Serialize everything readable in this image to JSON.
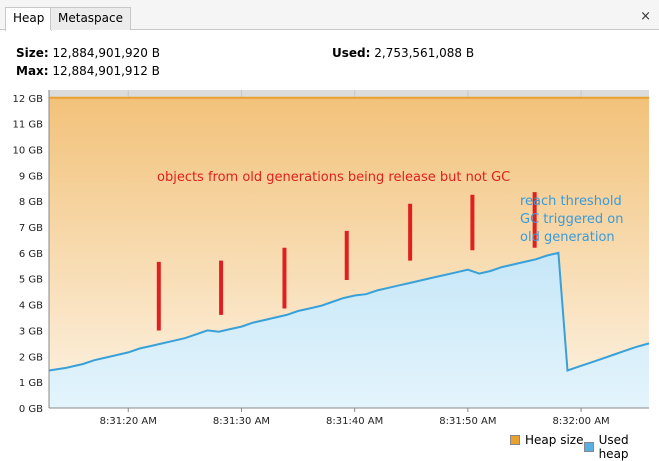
{
  "tabs": [
    {
      "label": "Heap",
      "active": true
    },
    {
      "label": "Metaspace",
      "active": false
    }
  ],
  "close_icon": "×",
  "stats": {
    "size_label": "Size:",
    "size_value": "12,884,901,920 B",
    "max_label": "Max:",
    "max_value": "12,884,901,912 B",
    "used_label": "Used:",
    "used_value": "2,753,561,088 B"
  },
  "annotations": {
    "top": "objects from old generations being release but not GC",
    "right_line1": "reach threshold",
    "right_line2": "GC triggered on",
    "right_line3": "old generation",
    "annotation_color": "#e02020",
    "note_color": "#3a9ad9"
  },
  "legend": {
    "heap_size_label": "Heap size",
    "used_heap_label": "Used heap",
    "heap_size_color": "#e8a030",
    "used_heap_color": "#5aaee0"
  },
  "chart_data": {
    "type": "area",
    "y_unit": "GB",
    "y_ticks": [
      "0 GB",
      "1 GB",
      "2 GB",
      "3 GB",
      "4 GB",
      "5 GB",
      "6 GB",
      "7 GB",
      "8 GB",
      "9 GB",
      "10 GB",
      "11 GB",
      "12 GB"
    ],
    "ylim": [
      0,
      12.3
    ],
    "x_ticks": [
      "8:31:20 AM",
      "8:31:30 AM",
      "8:31:40 AM",
      "8:31:50 AM",
      "8:32:00 AM"
    ],
    "xlim_seconds": [
      13,
      66
    ],
    "grid": true,
    "legend_position": "bottom-right",
    "series": [
      {
        "name": "Heap size",
        "x_seconds": [
          13,
          66
        ],
        "values": [
          12.0,
          12.0
        ]
      },
      {
        "name": "Used heap",
        "x_seconds": [
          13,
          14.5,
          16,
          17,
          18,
          19,
          20,
          21,
          22,
          23,
          24,
          25,
          26,
          27,
          28,
          29,
          30,
          31,
          32,
          33,
          34,
          35,
          36,
          37,
          38,
          39,
          40,
          41,
          42,
          43,
          44,
          45,
          46,
          47,
          48,
          49,
          50,
          51,
          52,
          53,
          54,
          55,
          56,
          57,
          58,
          58.8,
          59.8,
          60.8,
          61.8,
          62.8,
          63.8,
          64.8,
          66
        ],
        "values": [
          1.45,
          1.55,
          1.7,
          1.85,
          1.95,
          2.05,
          2.15,
          2.3,
          2.4,
          2.5,
          2.6,
          2.7,
          2.85,
          3.0,
          2.95,
          3.05,
          3.15,
          3.3,
          3.4,
          3.5,
          3.6,
          3.75,
          3.85,
          3.95,
          4.1,
          4.25,
          4.35,
          4.4,
          4.55,
          4.65,
          4.75,
          4.85,
          4.95,
          5.05,
          5.15,
          5.25,
          5.35,
          5.2,
          5.3,
          5.45,
          5.55,
          5.65,
          5.75,
          5.9,
          6.0,
          1.45,
          1.6,
          1.75,
          1.9,
          2.05,
          2.2,
          2.35,
          2.5
        ]
      }
    ],
    "annotation_bars": [
      {
        "x_seconds": 22.7,
        "y_from": 3.0,
        "y_to": 5.65
      },
      {
        "x_seconds": 28.2,
        "y_from": 3.6,
        "y_to": 5.7
      },
      {
        "x_seconds": 33.8,
        "y_from": 3.85,
        "y_to": 6.2
      },
      {
        "x_seconds": 39.3,
        "y_from": 4.95,
        "y_to": 6.85
      },
      {
        "x_seconds": 44.9,
        "y_from": 5.7,
        "y_to": 7.9
      },
      {
        "x_seconds": 50.4,
        "y_from": 6.1,
        "y_to": 8.25
      },
      {
        "x_seconds": 55.9,
        "y_from": 6.2,
        "y_to": 8.35
      }
    ]
  }
}
